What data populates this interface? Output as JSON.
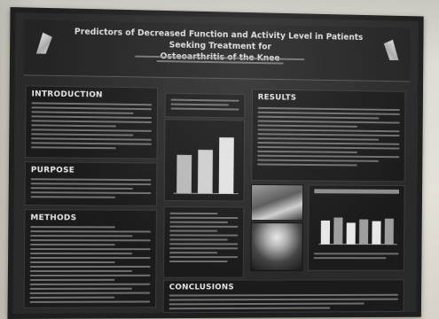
{
  "poster": {
    "title_line1": "Predictors of Decreased Function and Activity Level in Patients Seeking Treatment for",
    "title_line2": "Osteoarthritis of the Knee",
    "authors_line1": "",
    "authors_line2": ""
  },
  "sections": {
    "introduction": "INTRODUCTION",
    "purpose": "PURPOSE",
    "methods": "METHODS",
    "results": "RESULTS",
    "conclusions": "CONCLUSIONS"
  },
  "colors": {
    "poster_background": "#2a2a2a",
    "panel_background": "#1b1b1b",
    "wall": "#e2dfd7"
  },
  "icons": [
    "university-logo-left",
    "university-logo-right"
  ],
  "charts": {
    "center_bar_chart": {
      "type": "bar",
      "values": [
        0.58,
        0.66,
        0.85
      ]
    },
    "right_bar_chart": {
      "type": "bar",
      "values": [
        0.55,
        0.62,
        0.5,
        0.58,
        0.54,
        0.6
      ]
    }
  }
}
